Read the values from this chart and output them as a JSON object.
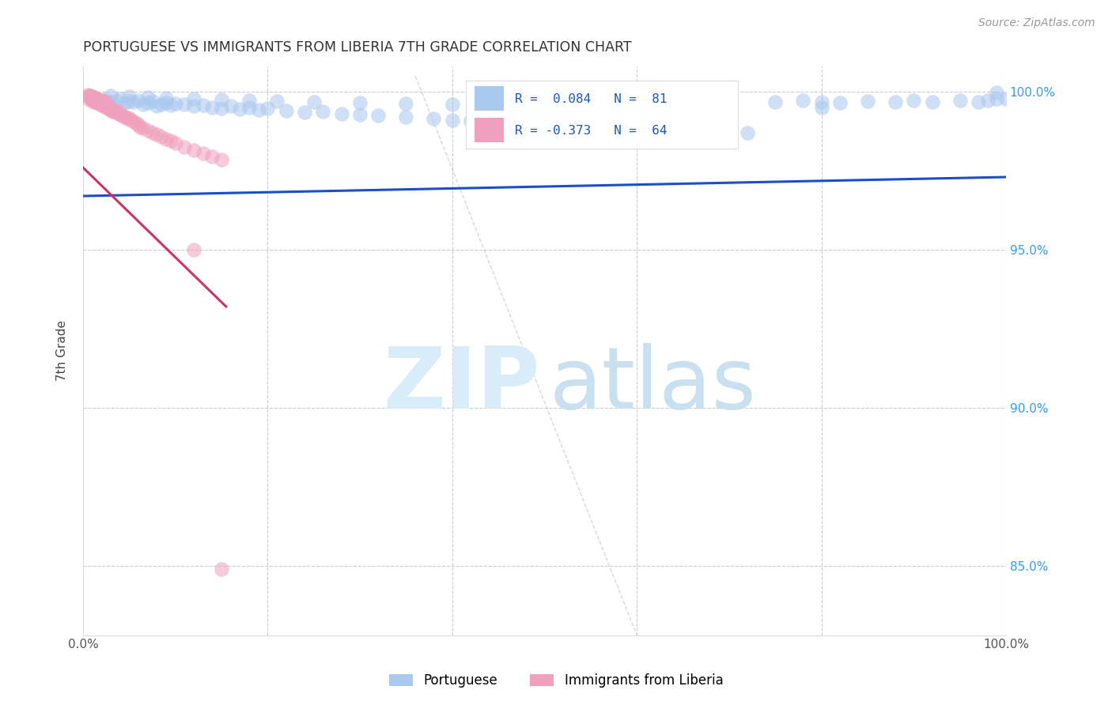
{
  "title": "PORTUGUESE VS IMMIGRANTS FROM LIBERIA 7TH GRADE CORRELATION CHART",
  "source": "Source: ZipAtlas.com",
  "ylabel": "7th Grade",
  "ytick_labels": [
    "85.0%",
    "90.0%",
    "95.0%",
    "100.0%"
  ],
  "ytick_values": [
    0.85,
    0.9,
    0.95,
    1.0
  ],
  "xlim": [
    0.0,
    1.0
  ],
  "ylim": [
    0.828,
    1.008
  ],
  "blue_color": "#A8C8F0",
  "pink_color": "#F0A0BC",
  "blue_line_color": "#1A4FCC",
  "pink_line_color": "#CC3366",
  "watermark_zip_color": "#D8ECFA",
  "watermark_atlas_color": "#C8E0F0",
  "blue_scatter_x": [
    0.005,
    0.01,
    0.015,
    0.02,
    0.025,
    0.03,
    0.035,
    0.04,
    0.045,
    0.05,
    0.055,
    0.06,
    0.065,
    0.07,
    0.075,
    0.08,
    0.085,
    0.09,
    0.095,
    0.1,
    0.11,
    0.12,
    0.13,
    0.14,
    0.15,
    0.16,
    0.17,
    0.18,
    0.19,
    0.2,
    0.22,
    0.24,
    0.26,
    0.28,
    0.3,
    0.32,
    0.35,
    0.38,
    0.4,
    0.42,
    0.45,
    0.48,
    0.5,
    0.52,
    0.55,
    0.58,
    0.6,
    0.62,
    0.65,
    0.68,
    0.7,
    0.72,
    0.75,
    0.78,
    0.8,
    0.82,
    0.85,
    0.88,
    0.9,
    0.92,
    0.95,
    0.97,
    0.98,
    0.99,
    1.0,
    0.03,
    0.05,
    0.07,
    0.09,
    0.12,
    0.15,
    0.18,
    0.21,
    0.25,
    0.3,
    0.35,
    0.4,
    0.5,
    0.6,
    0.7,
    0.8,
    0.99
  ],
  "blue_scatter_y": [
    0.9985,
    0.998,
    0.9975,
    0.997,
    0.9975,
    0.9968,
    0.9972,
    0.9978,
    0.9965,
    0.997,
    0.9968,
    0.9972,
    0.996,
    0.9965,
    0.997,
    0.9955,
    0.996,
    0.9965,
    0.9958,
    0.9962,
    0.996,
    0.9955,
    0.9958,
    0.995,
    0.9948,
    0.9955,
    0.9945,
    0.995,
    0.9942,
    0.9948,
    0.994,
    0.9935,
    0.9938,
    0.993,
    0.9928,
    0.9925,
    0.992,
    0.9915,
    0.991,
    0.9908,
    0.9905,
    0.99,
    0.9898,
    0.9895,
    0.9892,
    0.9888,
    0.9885,
    0.9882,
    0.9878,
    0.9875,
    0.9872,
    0.987,
    0.9968,
    0.9972,
    0.9968,
    0.9965,
    0.997,
    0.9968,
    0.9972,
    0.9968,
    0.9972,
    0.9968,
    0.9972,
    0.9978,
    0.9978,
    0.9988,
    0.9985,
    0.9982,
    0.998,
    0.9978,
    0.9975,
    0.9972,
    0.997,
    0.9968,
    0.9965,
    0.9962,
    0.996,
    0.9958,
    0.9955,
    0.9952,
    0.995,
    0.9998
  ],
  "pink_scatter_x": [
    0.005,
    0.008,
    0.01,
    0.01,
    0.012,
    0.012,
    0.015,
    0.015,
    0.018,
    0.018,
    0.02,
    0.02,
    0.022,
    0.022,
    0.025,
    0.025,
    0.028,
    0.028,
    0.03,
    0.03,
    0.032,
    0.035,
    0.035,
    0.038,
    0.04,
    0.04,
    0.042,
    0.045,
    0.048,
    0.05,
    0.052,
    0.055,
    0.058,
    0.06,
    0.062,
    0.065,
    0.07,
    0.075,
    0.08,
    0.085,
    0.09,
    0.095,
    0.1,
    0.11,
    0.12,
    0.13,
    0.14,
    0.15,
    0.008,
    0.01,
    0.012,
    0.015,
    0.018,
    0.02,
    0.022,
    0.025,
    0.005,
    0.007,
    0.009,
    0.011,
    0.014,
    0.017,
    0.12,
    0.15
  ],
  "pink_scatter_y": [
    0.9978,
    0.9982,
    0.9975,
    0.997,
    0.9972,
    0.9968,
    0.997,
    0.9965,
    0.9968,
    0.9962,
    0.9965,
    0.9958,
    0.996,
    0.9955,
    0.9958,
    0.995,
    0.9952,
    0.9945,
    0.9948,
    0.9942,
    0.9938,
    0.994,
    0.9935,
    0.9932,
    0.9928,
    0.9935,
    0.9925,
    0.992,
    0.9915,
    0.9918,
    0.991,
    0.9905,
    0.99,
    0.9895,
    0.9888,
    0.9885,
    0.9878,
    0.987,
    0.9865,
    0.9858,
    0.985,
    0.9845,
    0.9838,
    0.9825,
    0.9815,
    0.9805,
    0.9795,
    0.9785,
    0.9988,
    0.9985,
    0.998,
    0.9978,
    0.9975,
    0.9972,
    0.997,
    0.9968,
    0.999,
    0.9988,
    0.9985,
    0.9982,
    0.9978,
    0.9975,
    0.95,
    0.849
  ],
  "blue_trend_x": [
    0.0,
    1.0
  ],
  "blue_trend_y": [
    0.967,
    0.973
  ],
  "pink_trend_x": [
    0.0,
    0.155
  ],
  "pink_trend_y": [
    0.976,
    0.932
  ],
  "diag_line_x": [
    0.36,
    0.6
  ],
  "diag_line_y": [
    1.005,
    0.828
  ]
}
